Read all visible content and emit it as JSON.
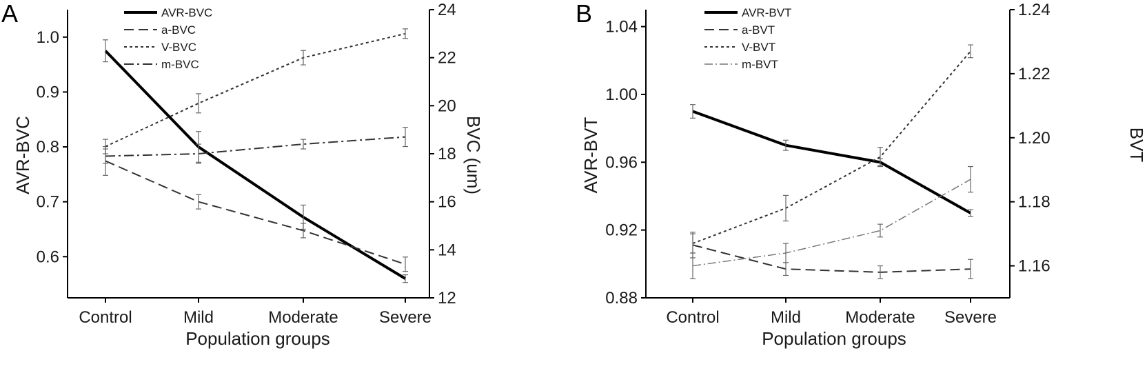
{
  "chart_data": [
    {
      "type": "line",
      "panel": "A",
      "title": "",
      "xlabel": "Population groups",
      "ylabel": "AVR-BVC",
      "ylabel_right": "BVC (um)",
      "categories": [
        "Control",
        "Mild",
        "Moderate",
        "Severe"
      ],
      "ylim": [
        0.525,
        1.05
      ],
      "yticks": [
        0.6,
        0.7,
        0.8,
        0.9,
        1.0
      ],
      "ytick_labels": [
        "0.6",
        "0.7",
        "0.8",
        "0.9",
        "1.0"
      ],
      "ylim_right": [
        12,
        24
      ],
      "yticks_right": [
        12,
        14,
        16,
        18,
        20,
        22,
        24
      ],
      "ytick_labels_right": [
        "12",
        "14",
        "16",
        "18",
        "20",
        "22",
        "24"
      ],
      "legend_position": "top-center",
      "grid": false,
      "series": [
        {
          "name": "AVR-BVC",
          "axis": "left",
          "style": "solid",
          "width": 4,
          "color": "#000000",
          "values": [
            0.975,
            0.8,
            0.672,
            0.56
          ],
          "errors": [
            0.02,
            0.028,
            0.022,
            0.007
          ]
        },
        {
          "name": "a-BVC",
          "axis": "right",
          "style": "dash",
          "width": 2,
          "color": "#333333",
          "values": [
            17.7,
            16.0,
            14.8,
            13.4
          ],
          "errors": [
            0.6,
            0.3,
            0.3,
            0.3
          ]
        },
        {
          "name": "V-BVC",
          "axis": "right",
          "style": "dot",
          "width": 2,
          "color": "#333333",
          "values": [
            18.3,
            20.1,
            22.0,
            23.0
          ],
          "errors": [
            0.3,
            0.4,
            0.3,
            0.2
          ]
        },
        {
          "name": "m-BVC",
          "axis": "right",
          "style": "dashdot",
          "width": 2,
          "color": "#333333",
          "values": [
            17.9,
            18.0,
            18.4,
            18.7
          ],
          "errors": [
            0.3,
            0.4,
            0.2,
            0.4
          ]
        }
      ]
    },
    {
      "type": "line",
      "panel": "B",
      "title": "",
      "xlabel": "Population groups",
      "ylabel": "AVR-BVT",
      "ylabel_right": "BVT",
      "categories": [
        "Control",
        "Mild",
        "Moderate",
        "Severe"
      ],
      "ylim": [
        0.88,
        1.05
      ],
      "yticks": [
        0.88,
        0.92,
        0.96,
        1.0,
        1.04
      ],
      "ytick_labels": [
        "0.88",
        "0.92",
        "0.96",
        "1.00",
        "1.04"
      ],
      "ylim_right": [
        1.15,
        1.24
      ],
      "yticks_right": [
        1.16,
        1.18,
        1.2,
        1.22,
        1.24
      ],
      "ytick_labels_right": [
        "1.16",
        "1.18",
        "1.20",
        "1.22",
        "1.24"
      ],
      "legend_position": "top-center",
      "grid": false,
      "series": [
        {
          "name": "AVR-BVT",
          "axis": "left",
          "style": "solid",
          "width": 4,
          "color": "#000000",
          "values": [
            0.99,
            0.97,
            0.96,
            0.93
          ],
          "errors": [
            0.004,
            0.003,
            0.002,
            0.002
          ]
        },
        {
          "name": "a-BVT",
          "axis": "right",
          "style": "dash",
          "width": 2,
          "color": "#333333",
          "values": [
            1.1665,
            1.159,
            1.158,
            1.159
          ],
          "errors": [
            0.004,
            0.002,
            0.002,
            0.003
          ]
        },
        {
          "name": "V-BVT",
          "axis": "right",
          "style": "dot",
          "width": 2,
          "color": "#333333",
          "values": [
            1.167,
            1.178,
            1.194,
            1.227
          ],
          "errors": [
            0.003,
            0.004,
            0.003,
            0.002
          ]
        },
        {
          "name": "m-BVT",
          "axis": "right",
          "style": "dashdotthin",
          "width": 1.5,
          "color": "#777777",
          "values": [
            1.16,
            1.164,
            1.171,
            1.187
          ],
          "errors": [
            0.004,
            0.003,
            0.002,
            0.004
          ]
        }
      ]
    }
  ]
}
